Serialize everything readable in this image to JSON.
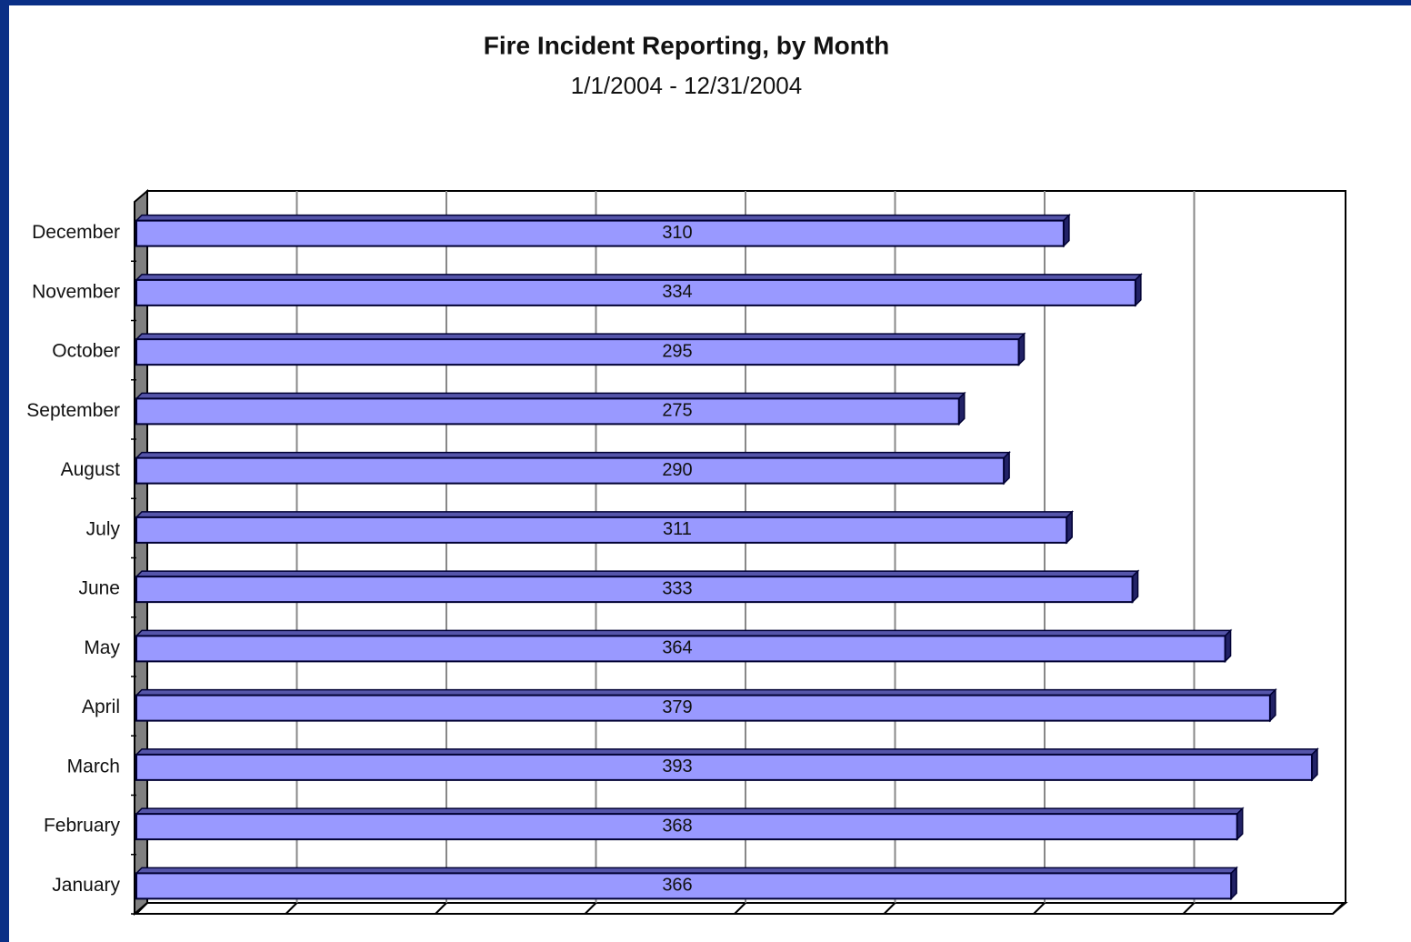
{
  "chart_data": {
    "type": "bar",
    "orientation": "horizontal",
    "title": "Fire Incident Reporting, by Month",
    "subtitle": "1/1/2004 - 12/31/2004",
    "categories": [
      "January",
      "February",
      "March",
      "April",
      "May",
      "June",
      "July",
      "August",
      "September",
      "October",
      "November",
      "December"
    ],
    "values": [
      366,
      368,
      393,
      379,
      364,
      333,
      311,
      290,
      275,
      295,
      334,
      310
    ],
    "color": "#9999ff",
    "xlim": [
      0,
      400
    ],
    "xticks": [
      0,
      50,
      100,
      150,
      200,
      250,
      300,
      350,
      400
    ],
    "grid": true
  }
}
